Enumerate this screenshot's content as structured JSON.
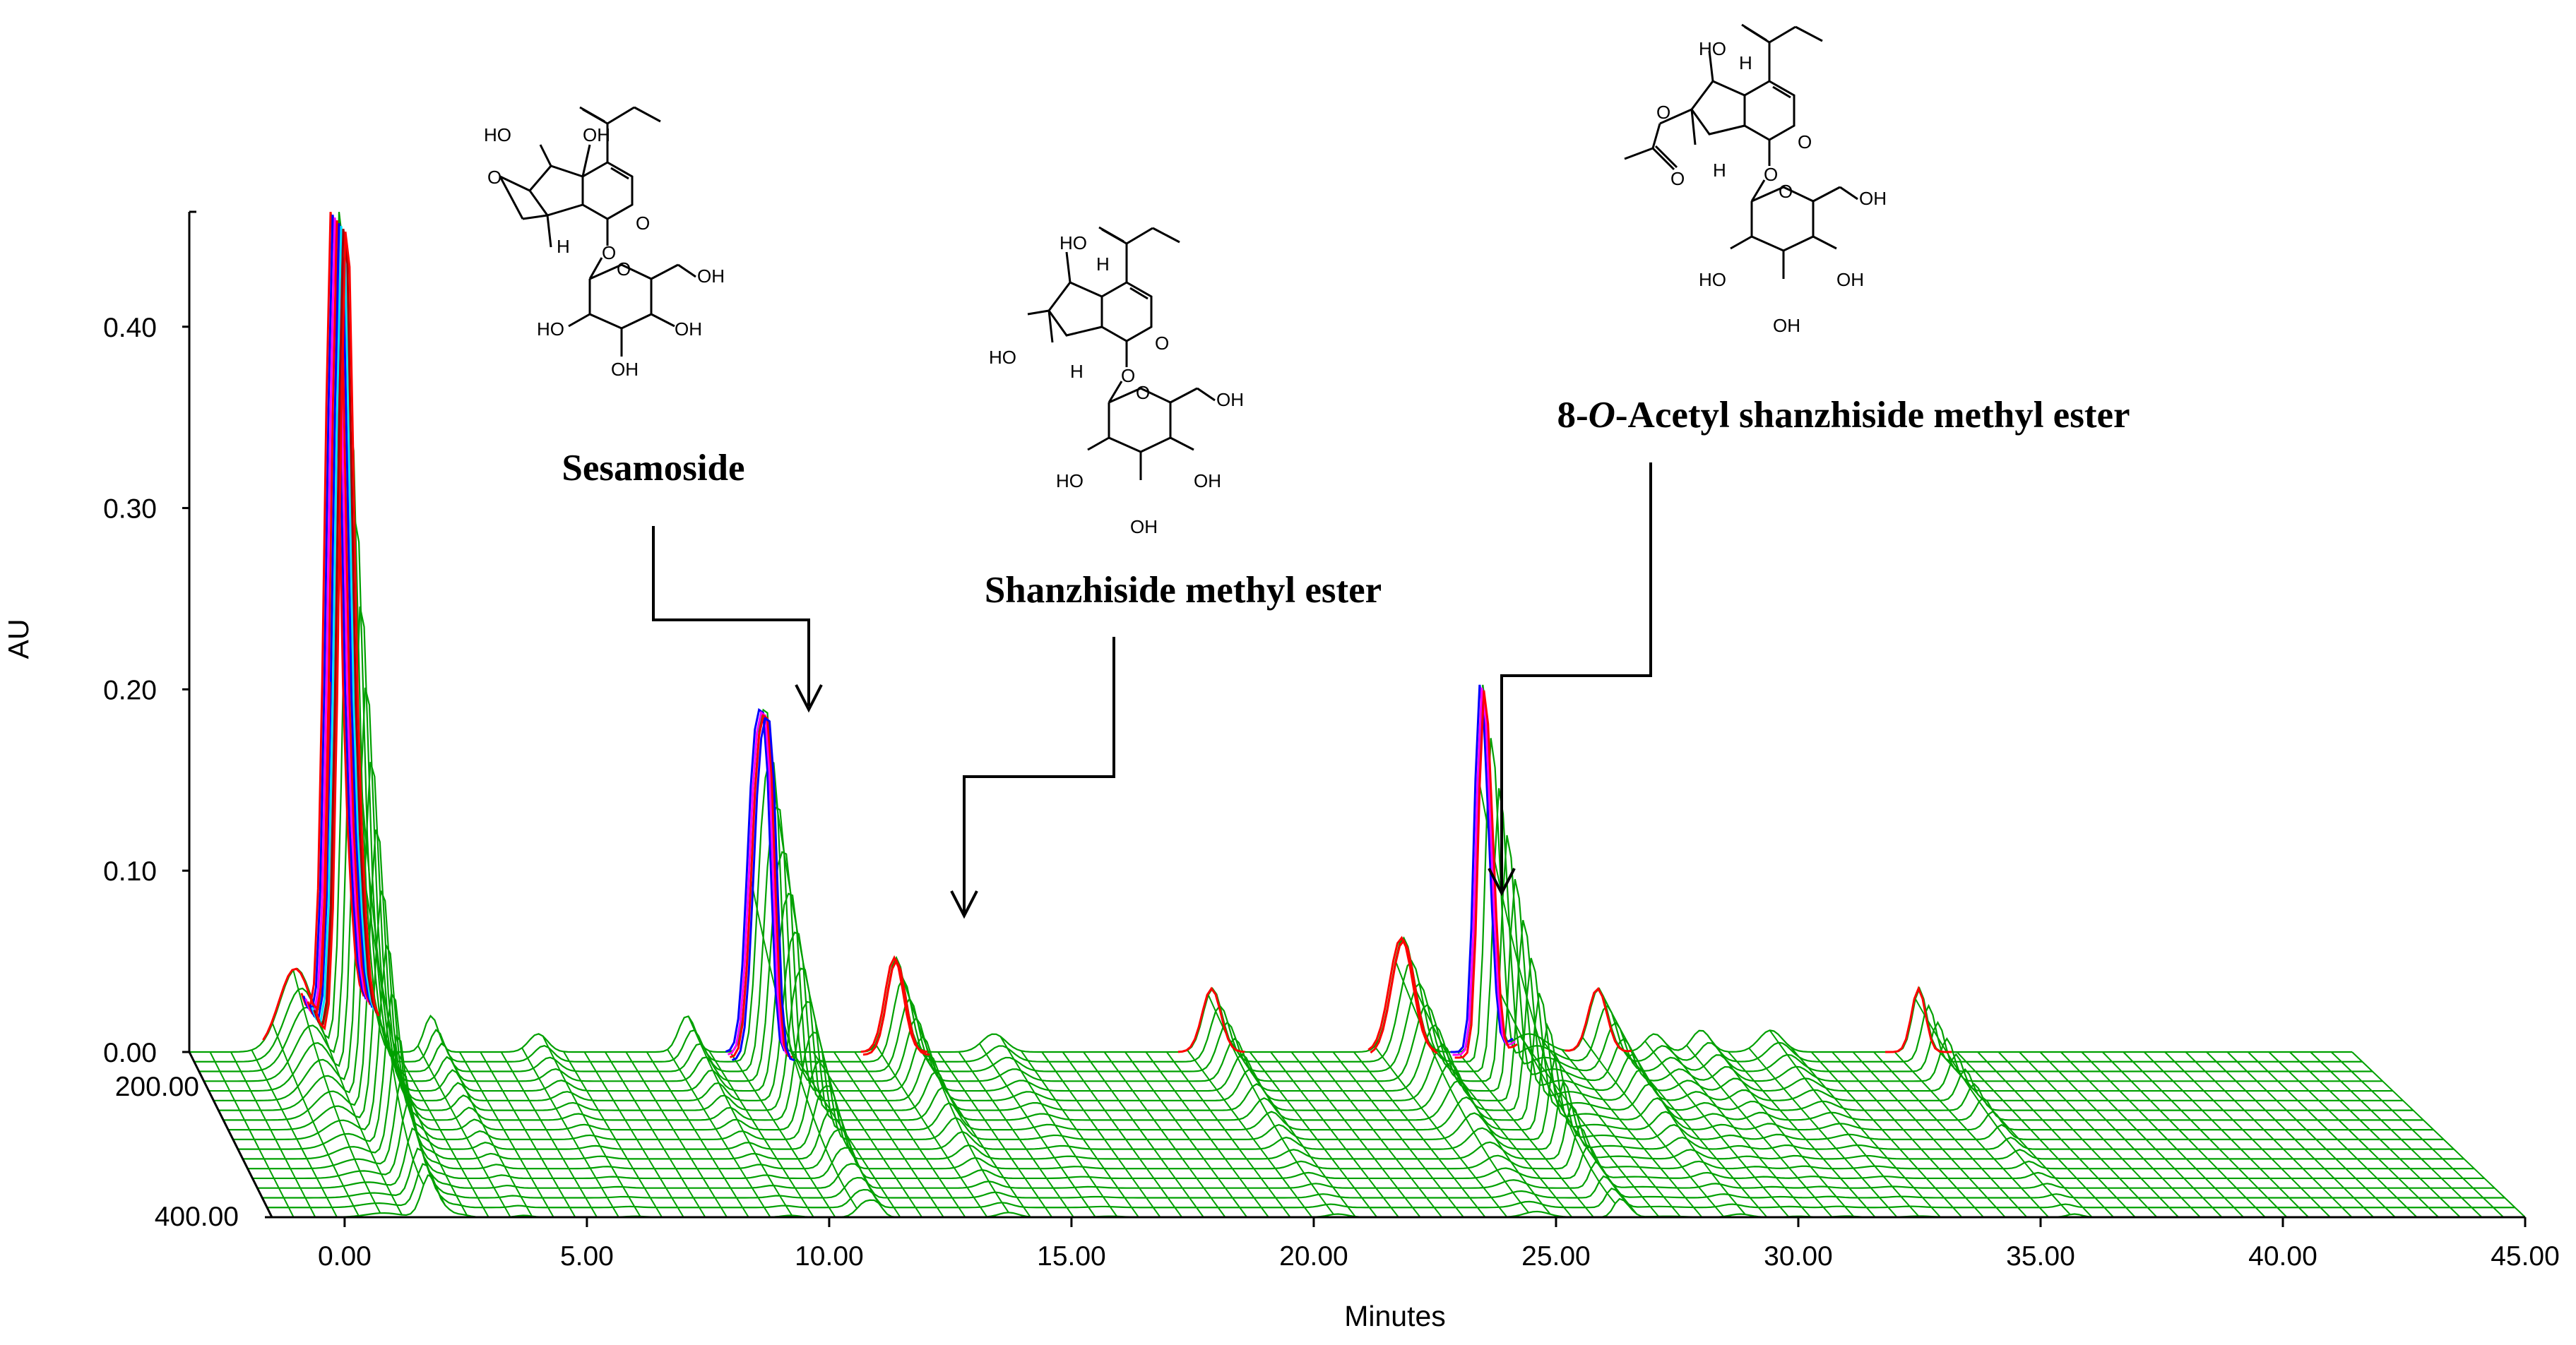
{
  "chart_data": {
    "type": "3d-waterfall",
    "x_axis": {
      "title": "Minutes",
      "range": [
        -1.5,
        45
      ],
      "ticks": [
        0,
        5,
        10,
        15,
        20,
        25,
        30,
        35,
        40,
        45
      ],
      "tick_labels": [
        "0.00",
        "5.00",
        "10.00",
        "15.00",
        "20.00",
        "25.00",
        "30.00",
        "35.00",
        "40.00",
        "45.00"
      ]
    },
    "y_axis": {
      "title": "AU",
      "range": [
        0,
        0.47
      ],
      "ticks": [
        0,
        0.1,
        0.2,
        0.3,
        0.4
      ],
      "tick_labels": [
        "0.00",
        "0.10",
        "0.20",
        "0.30",
        "0.40"
      ]
    },
    "z_axis": {
      "range": [
        200,
        400
      ],
      "tick_labels": [
        "200.00",
        "400.00"
      ]
    },
    "peaks": [
      {
        "t": 0.8,
        "h": 0.046,
        "w": 0.35
      },
      {
        "t": 1.75,
        "h": 0.47,
        "w": 0.16
      },
      {
        "t": 2.1,
        "h": 0.07,
        "w": 0.12
      },
      {
        "t": 2.4,
        "h": 0.03,
        "w": 0.15
      },
      {
        "t": 3.7,
        "h": 0.02,
        "w": 0.15
      },
      {
        "t": 6.0,
        "h": 0.01,
        "w": 0.2
      },
      {
        "t": 9.2,
        "h": 0.02,
        "w": 0.18
      },
      {
        "t": 10.75,
        "h": 0.165,
        "w": 0.17
      },
      {
        "t": 11.0,
        "h": 0.11,
        "w": 0.12
      },
      {
        "t": 13.7,
        "h": 0.052,
        "w": 0.2
      },
      {
        "t": 15.8,
        "h": 0.01,
        "w": 0.25
      },
      {
        "t": 20.5,
        "h": 0.035,
        "w": 0.2
      },
      {
        "t": 24.6,
        "h": 0.063,
        "w": 0.25
      },
      {
        "t": 26.3,
        "h": 0.18,
        "w": 0.12
      },
      {
        "t": 26.5,
        "h": 0.08,
        "w": 0.12
      },
      {
        "t": 27.3,
        "h": 0.01,
        "w": 0.35
      },
      {
        "t": 28.8,
        "h": 0.035,
        "w": 0.2
      },
      {
        "t": 30.0,
        "h": 0.01,
        "w": 0.2
      },
      {
        "t": 31.0,
        "h": 0.012,
        "w": 0.2
      },
      {
        "t": 32.5,
        "h": 0.012,
        "w": 0.25
      },
      {
        "t": 35.7,
        "h": 0.035,
        "w": 0.15
      }
    ],
    "compounds": [
      {
        "name": "Sesamoside",
        "retention_time": 10.75
      },
      {
        "name": "Shanzhiside methyl ester",
        "retention_time": 13.7
      },
      {
        "name_prefix": "8-",
        "name_italic": "O",
        "name_suffix": "-Acetyl shanzhiside methyl ester",
        "retention_time": 24.6
      }
    ],
    "colors": {
      "mesh": "#00a000",
      "peak_red": "#ff0000",
      "peak_blue": "#0000ff",
      "peak_magenta": "#ff00ff",
      "peak_cyan": "#00e5ff",
      "peak_darkred": "#a00000"
    }
  },
  "structures": {
    "oh": "OH",
    "ho": "HO",
    "h": "H",
    "o": "O"
  }
}
